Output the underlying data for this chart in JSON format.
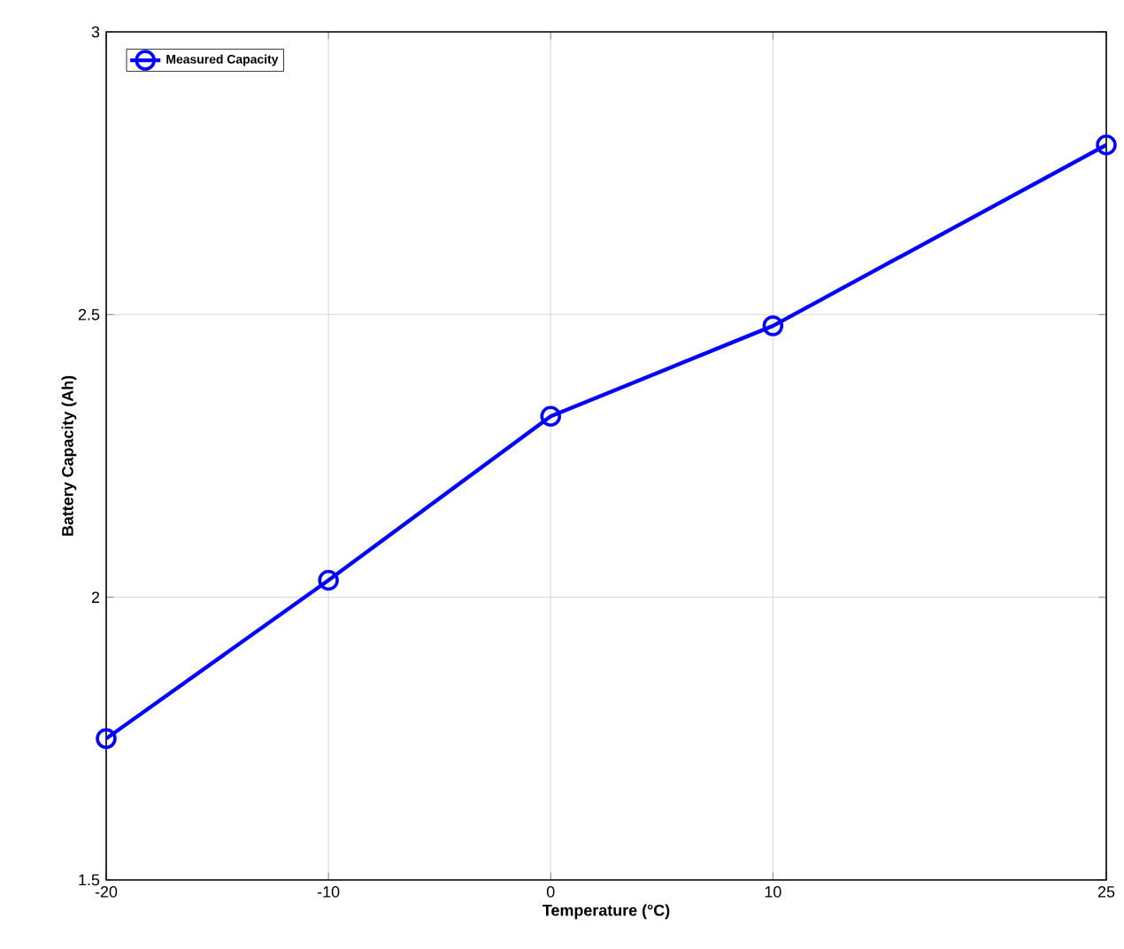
{
  "chart_data": {
    "type": "line",
    "xlabel": "Temperature (°C)",
    "ylabel": "Battery Capacity (Ah)",
    "x": [
      -20,
      -10,
      0,
      10,
      25
    ],
    "series": [
      {
        "name": "Measured Capacity",
        "color": "#0000ff",
        "values": [
          1.75,
          2.03,
          2.32,
          2.48,
          2.8
        ]
      }
    ],
    "xlim": [
      -20,
      25
    ],
    "xticks": [
      -20,
      -10,
      0,
      10,
      25
    ],
    "ylim": [
      1.5,
      3
    ],
    "yticks": [
      1.5,
      2,
      2.5,
      3
    ],
    "grid": true,
    "legend": "top left",
    "marker": "circle",
    "line_style": "solid"
  }
}
